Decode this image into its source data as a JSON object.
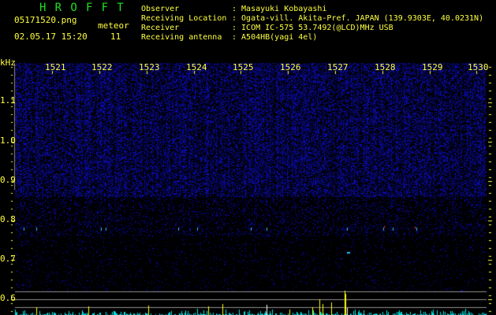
{
  "app": {
    "title": "H R O F F T"
  },
  "file": {
    "name": "05171520.png",
    "datetime": "02.05.17 15:20"
  },
  "meteor": {
    "label": "meteor",
    "count": "11"
  },
  "info": [
    {
      "label": "Observer",
      "value": ": Masayuki Kobayashi"
    },
    {
      "label": "Receiving Location",
      "value": ": Ogata-vill. Akita-Pref. JAPAN (139.9303E, 40.0231N)"
    },
    {
      "label": "Receiver",
      "value": ": ICOM IC-575 53.7492(@LCD)MHz USB"
    },
    {
      "label": "Receiving antenna",
      "value": ": A504HB(yagi 4el)"
    }
  ],
  "axis": {
    "unit": "kHz",
    "time_labels": [
      "1521",
      "1522",
      "1523",
      "1524",
      "1525",
      "1526",
      "1527",
      "1528",
      "1529",
      "1530"
    ],
    "freq_labels": [
      "1.1",
      "1.0",
      "0.9",
      "0.8",
      "0.7",
      "0.6"
    ]
  },
  "colors": {
    "text": "#ffff40",
    "title": "#20e020",
    "noise": "#2020c0",
    "count_bar": "#00e0e0",
    "meteor_bar": "#ffff00"
  }
}
